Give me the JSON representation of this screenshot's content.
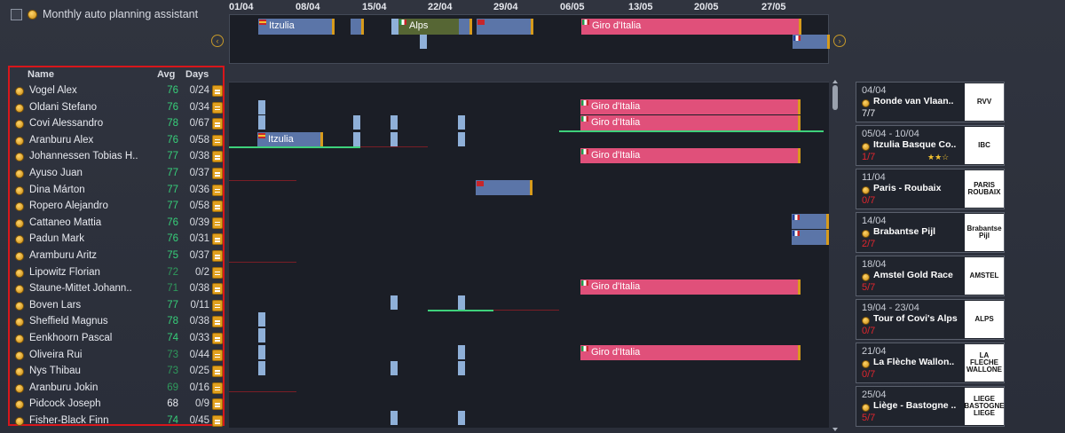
{
  "assistant": {
    "label": "Monthly auto planning assistant"
  },
  "timeline": {
    "dates": [
      "01/04",
      "08/04",
      "15/04",
      "22/04",
      "29/04",
      "06/05",
      "13/05",
      "20/05",
      "27/05"
    ],
    "overview_races": [
      "Itzulia",
      "Alps",
      "Giro d'Italia"
    ]
  },
  "roster": {
    "headers": {
      "name": "Name",
      "avg": "Avg",
      "days": "Days"
    },
    "riders": [
      {
        "name": "Vogel Alex",
        "avg": "76",
        "days": "0/24",
        "color": "#37d07a"
      },
      {
        "name": "Oldani Stefano",
        "avg": "76",
        "days": "0/34",
        "color": "#37d07a"
      },
      {
        "name": "Covi Alessandro",
        "avg": "78",
        "days": "0/67",
        "color": "#37d07a"
      },
      {
        "name": "Aranburu Alex",
        "avg": "76",
        "days": "0/58",
        "color": "#37d07a"
      },
      {
        "name": "Johannessen Tobias H..",
        "avg": "77",
        "days": "0/38",
        "color": "#37d07a"
      },
      {
        "name": "Ayuso Juan",
        "avg": "77",
        "days": "0/37",
        "color": "#37d07a"
      },
      {
        "name": "Dina Márton",
        "avg": "77",
        "days": "0/36",
        "color": "#37d07a"
      },
      {
        "name": "Ropero Alejandro",
        "avg": "77",
        "days": "0/58",
        "color": "#37d07a"
      },
      {
        "name": "Cattaneo Mattia",
        "avg": "76",
        "days": "0/39",
        "color": "#37d07a"
      },
      {
        "name": "Padun Mark",
        "avg": "76",
        "days": "0/31",
        "color": "#37d07a"
      },
      {
        "name": "Aramburu Aritz",
        "avg": "75",
        "days": "0/37",
        "color": "#37d07a"
      },
      {
        "name": "Lipowitz Florian",
        "avg": "72",
        "days": "0/2",
        "color": "#2f9a5c"
      },
      {
        "name": "Staune-Mittet Johann..",
        "avg": "71",
        "days": "0/38",
        "color": "#2f9a5c"
      },
      {
        "name": "Boven Lars",
        "avg": "77",
        "days": "0/11",
        "color": "#37d07a"
      },
      {
        "name": "Sheffield Magnus",
        "avg": "78",
        "days": "0/38",
        "color": "#37d07a"
      },
      {
        "name": "Eenkhoorn Pascal",
        "avg": "74",
        "days": "0/33",
        "color": "#37d07a"
      },
      {
        "name": "Oliveira Rui",
        "avg": "73",
        "days": "0/44",
        "color": "#2f9a5c"
      },
      {
        "name": "Nys Thibau",
        "avg": "73",
        "days": "0/25",
        "color": "#2f9a5c"
      },
      {
        "name": "Aranburu Jokin",
        "avg": "69",
        "days": "0/16",
        "color": "#2f9a5c"
      },
      {
        "name": "Pidcock Joseph",
        "avg": "68",
        "days": "0/9",
        "color": "#e8eaf0"
      },
      {
        "name": "Fisher-Black Finn",
        "avg": "74",
        "days": "0/45",
        "color": "#37d07a"
      }
    ]
  },
  "grid_labels": {
    "itzulia": "Itzulia",
    "giro": "Giro d'Italia"
  },
  "races": [
    {
      "date": "04/04",
      "name": "Ronde van Vlaan..",
      "count": "7/7",
      "count_color": "#e6e8ee",
      "logo": "RVV"
    },
    {
      "date": "05/04 - 10/04",
      "name": "Itzulia Basque Co..",
      "count": "1/7",
      "count_color": "#e0262e",
      "logo": "IBC",
      "stars": "★★☆"
    },
    {
      "date": "11/04",
      "name": "Paris - Roubaix",
      "count": "0/7",
      "count_color": "#e0262e",
      "logo": "PARIS ROUBAIX"
    },
    {
      "date": "14/04",
      "name": "Brabantse Pijl",
      "count": "2/7",
      "count_color": "#e0262e",
      "logo": "Brabantse Pijl"
    },
    {
      "date": "18/04",
      "name": "Amstel Gold Race",
      "count": "5/7",
      "count_color": "#e0262e",
      "logo": "AMSTEL"
    },
    {
      "date": "19/04 - 23/04",
      "name": "Tour of Covi's Alps",
      "count": "0/7",
      "count_color": "#e0262e",
      "logo": "ALPS"
    },
    {
      "date": "21/04",
      "name": "La Flèche Wallon..",
      "count": "0/7",
      "count_color": "#e0262e",
      "logo": "LA FLECHE WALLONE"
    },
    {
      "date": "25/04",
      "name": "Liège - Bastogne ..",
      "count": "5/7",
      "count_color": "#e0262e",
      "logo": "LIEGE BASTOGNE LIEGE"
    }
  ]
}
